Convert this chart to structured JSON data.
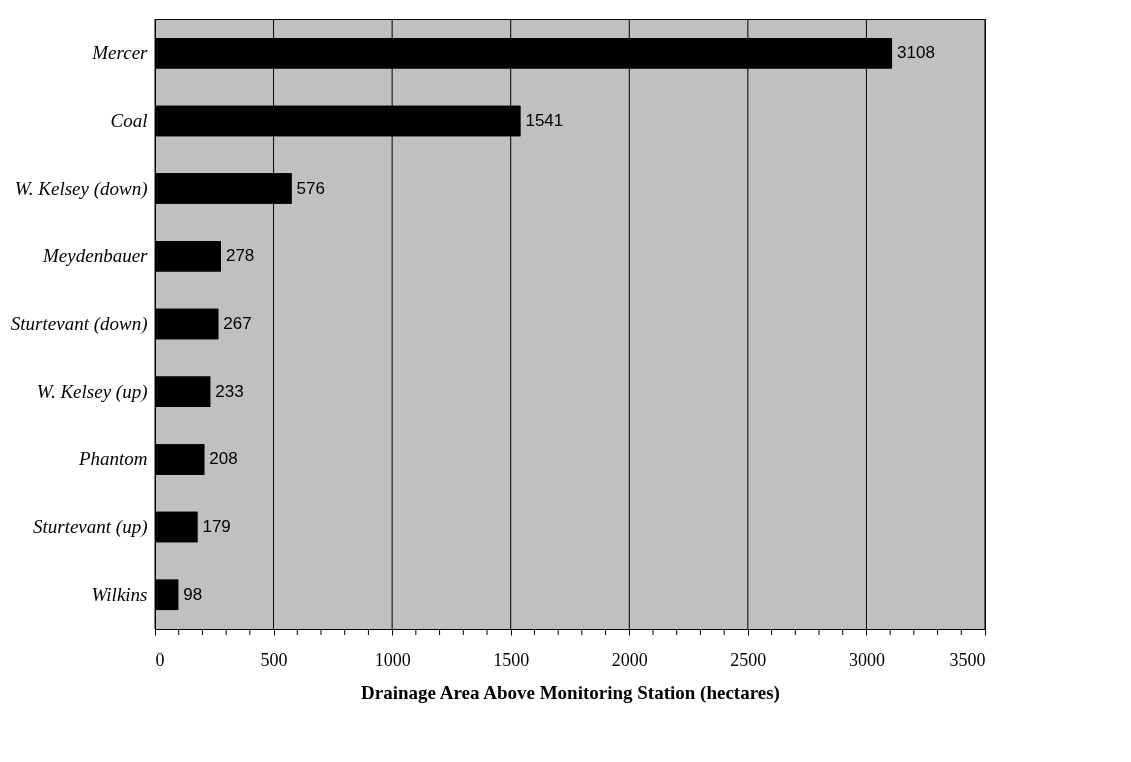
{
  "chart_data": {
    "type": "bar",
    "orientation": "horizontal",
    "xlabel": "Drainage Area Above Monitoring Station (hectares)",
    "categories": [
      "Mercer",
      "Coal",
      "W. Kelsey (down)",
      "Meydenbauer",
      "Sturtevant (down)",
      "W. Kelsey (up)",
      "Phantom",
      "Sturtevant (up)",
      "Wilkins"
    ],
    "values": [
      3108,
      1541,
      576,
      278,
      267,
      233,
      208,
      179,
      98
    ],
    "color": "#000000",
    "data_labels": true,
    "grid": "x",
    "xlim": [
      0,
      3500
    ],
    "xticks": [
      0,
      {
        "value": 100,
        "label": null
      },
      {
        "value": 200,
        "label": null
      },
      {
        "value": 300,
        "label": null
      },
      {
        "value": 400,
        "label": null
      },
      500,
      {
        "value": 600,
        "label": null
      },
      {
        "value": 700,
        "label": null
      },
      {
        "value": 800,
        "label": null
      },
      {
        "value": 900,
        "label": null
      },
      1000,
      {
        "value": 1100,
        "label": null
      },
      {
        "value": 1200,
        "label": null
      },
      {
        "value": 1300,
        "label": null
      },
      {
        "value": 1400,
        "label": null
      },
      1500,
      {
        "value": 1600,
        "label": null
      },
      {
        "value": 1700,
        "label": null
      },
      {
        "value": 1800,
        "label": null
      },
      {
        "value": 1900,
        "label": null
      },
      2000,
      {
        "value": 2100,
        "label": null
      },
      {
        "value": 2200,
        "label": null
      },
      {
        "value": 2300,
        "label": null
      },
      {
        "value": 2400,
        "label": null
      },
      2500,
      {
        "value": 2600,
        "label": null
      },
      {
        "value": 2700,
        "label": null
      },
      {
        "value": 2800,
        "label": null
      },
      {
        "value": 2900,
        "label": null
      },
      3000,
      {
        "value": 3100,
        "label": null
      },
      {
        "value": 3200,
        "label": null
      },
      {
        "value": 3300,
        "label": null
      },
      {
        "value": 3400,
        "label": null
      },
      3500
    ]
  }
}
